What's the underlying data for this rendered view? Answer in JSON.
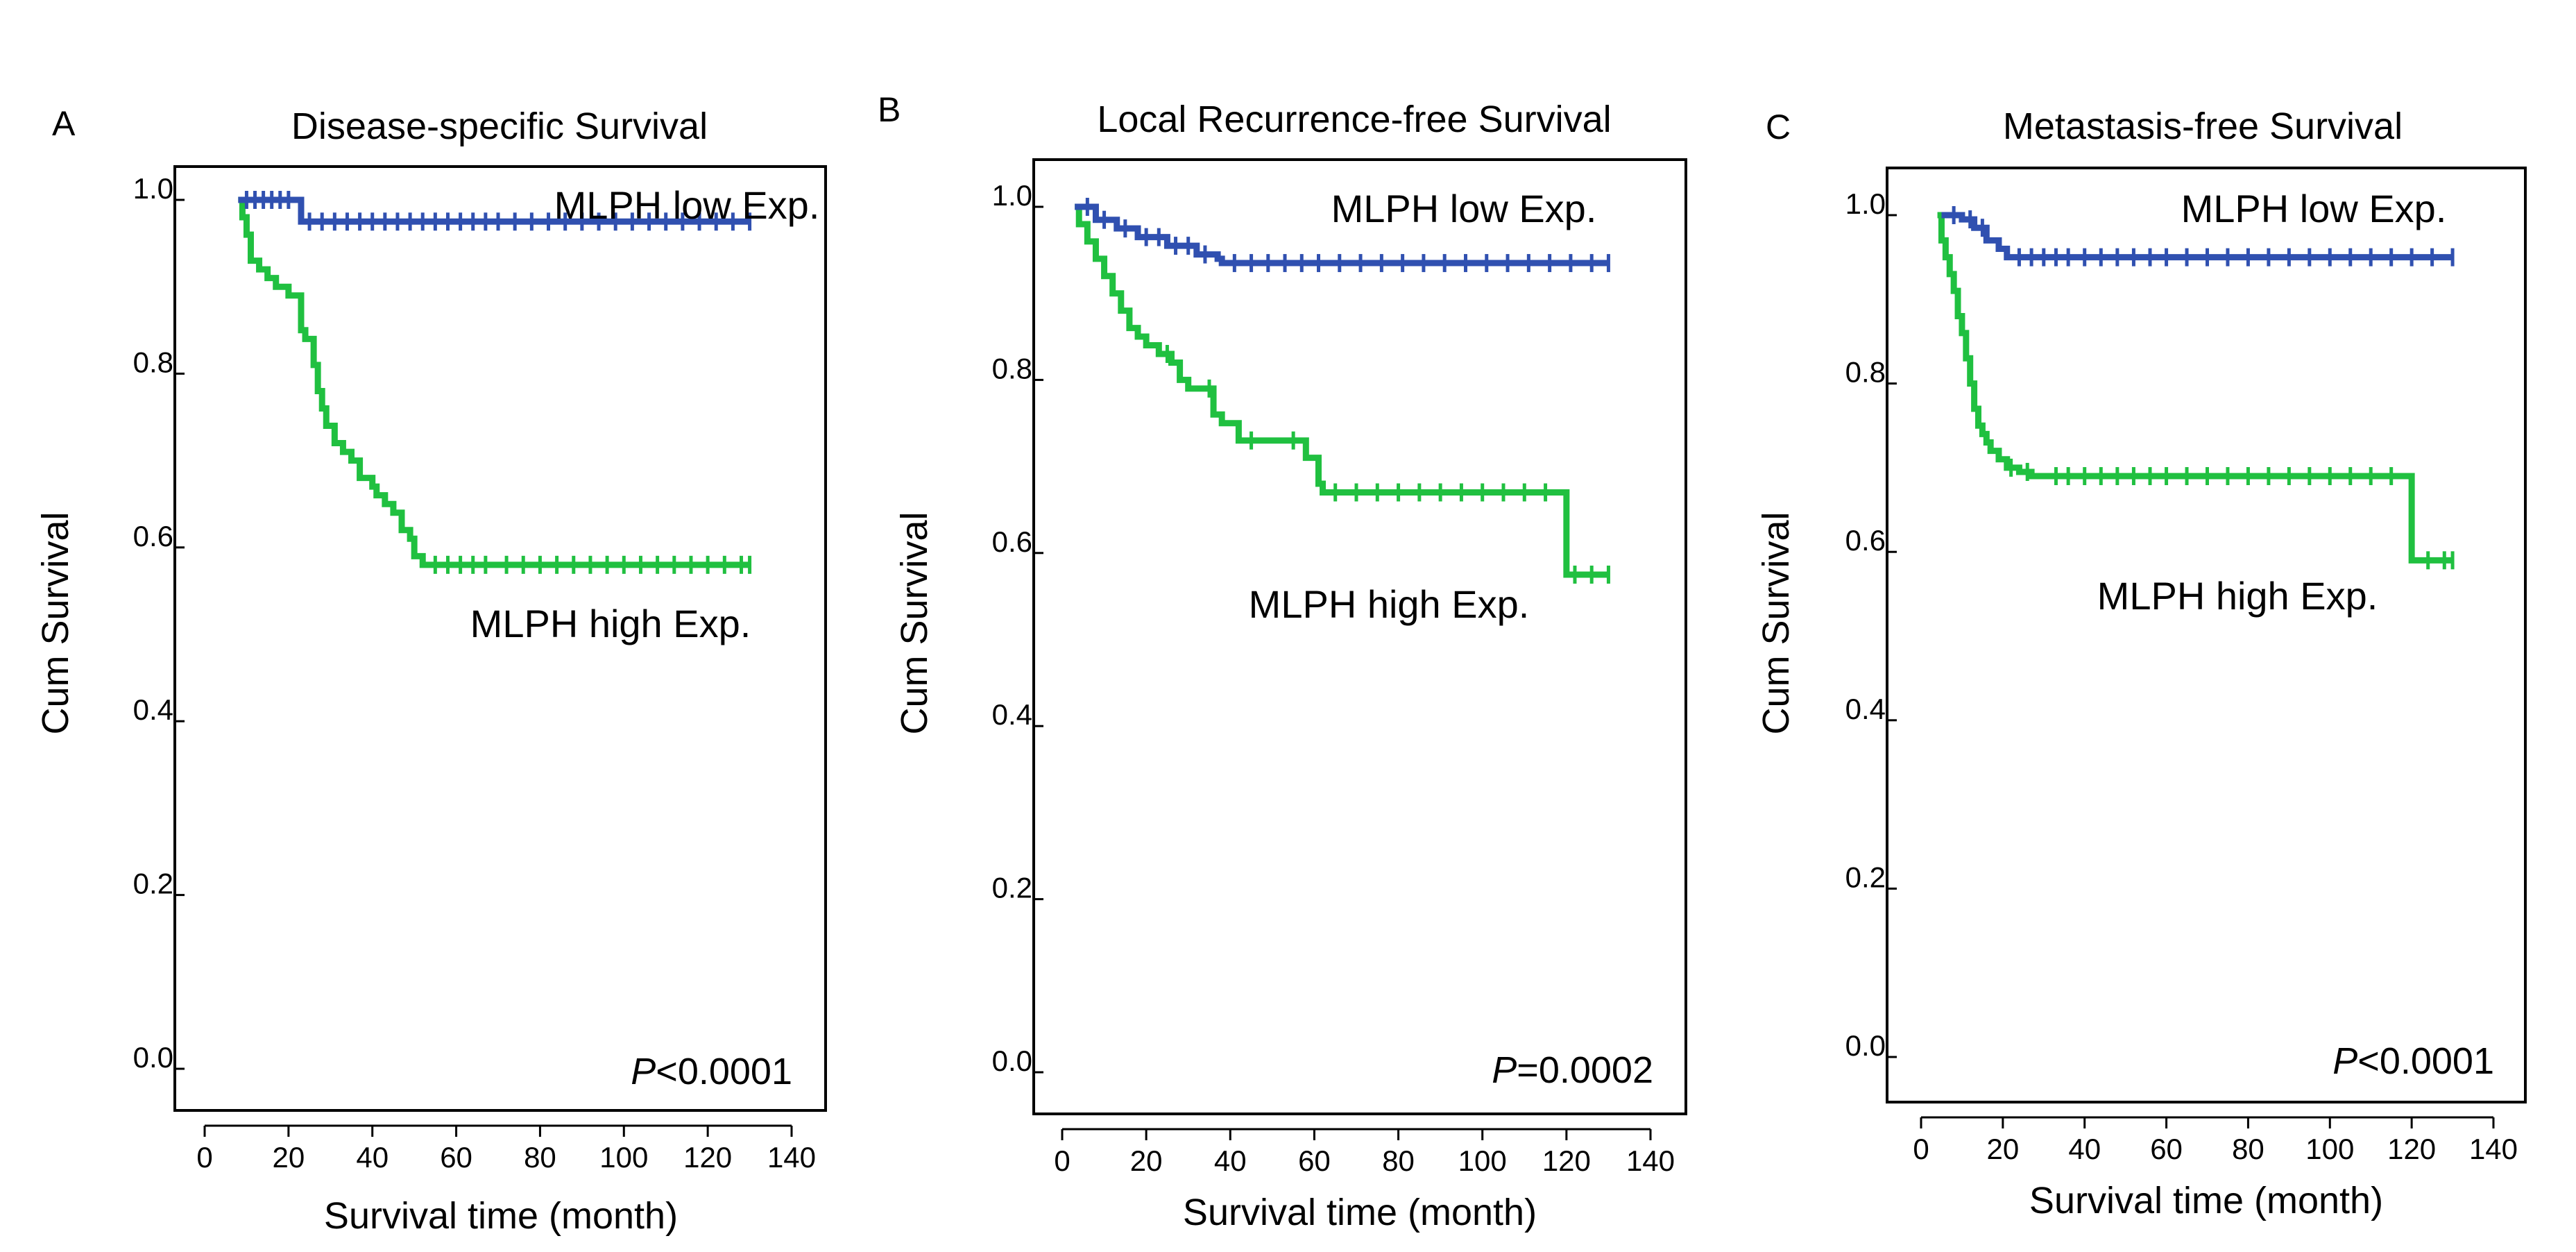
{
  "chart_data": [
    {
      "panel": "A",
      "type": "line",
      "title": "Disease-specific Survival",
      "xlabel": "Survival time (month)",
      "ylabel": "Cum Survival",
      "xlim": [
        0,
        140
      ],
      "ylim": [
        0.0,
        1.0
      ],
      "xticks": [
        "0",
        "20",
        "40",
        "60",
        "80",
        "100",
        "120",
        "140"
      ],
      "yticks": [
        "0.0",
        "0.2",
        "0.4",
        "0.6",
        "0.8",
        "1.0"
      ],
      "p_symbol": "P",
      "p_rest": "<0.0001",
      "series": [
        {
          "name": "MLPH low Exp.",
          "color": "#3050b0",
          "x": [
            8,
            22,
            23,
            130
          ],
          "y": [
            1.0,
            1.0,
            0.975,
            0.975
          ],
          "censor_x": [
            10,
            12,
            14,
            16,
            18,
            20,
            25,
            28,
            31,
            34,
            37,
            40,
            43,
            46,
            49,
            52,
            55,
            58,
            61,
            64,
            67,
            70,
            74,
            78,
            82,
            86,
            90,
            94,
            98,
            102,
            106,
            110,
            114,
            118,
            122,
            126,
            130
          ]
        },
        {
          "name": "MLPH high Exp.",
          "color": "#20c040",
          "x": [
            8,
            9,
            10,
            11,
            13,
            15,
            17,
            20,
            23,
            24,
            26,
            27,
            28,
            29,
            31,
            33,
            35,
            37,
            40,
            41,
            43,
            45,
            47,
            49,
            50,
            52,
            130
          ],
          "y": [
            1.0,
            0.98,
            0.96,
            0.93,
            0.92,
            0.91,
            0.9,
            0.89,
            0.85,
            0.84,
            0.81,
            0.78,
            0.76,
            0.74,
            0.72,
            0.71,
            0.7,
            0.68,
            0.67,
            0.66,
            0.65,
            0.64,
            0.62,
            0.61,
            0.59,
            0.58,
            0.58
          ],
          "censor_x": [
            55,
            58,
            61,
            64,
            67,
            72,
            76,
            80,
            84,
            88,
            92,
            96,
            100,
            104,
            108,
            112,
            116,
            120,
            124,
            128,
            130
          ]
        }
      ]
    },
    {
      "panel": "B",
      "type": "line",
      "title": "Local Recurrence-free Survival",
      "xlabel": "Survival time (month)",
      "ylabel": "Cum Survival",
      "xlim": [
        0,
        140
      ],
      "ylim": [
        0.0,
        1.0
      ],
      "xticks": [
        "0",
        "20",
        "40",
        "60",
        "80",
        "100",
        "120",
        "140"
      ],
      "yticks": [
        "0.0",
        "0.2",
        "0.4",
        "0.6",
        "0.8",
        "1.0"
      ],
      "p_symbol": "P",
      "p_rest": "=0.0002",
      "series": [
        {
          "name": "MLPH low Exp.",
          "color": "#3050b0",
          "x": [
            3,
            8,
            13,
            18,
            25,
            32,
            37,
            38,
            130
          ],
          "y": [
            1.0,
            0.985,
            0.975,
            0.965,
            0.955,
            0.945,
            0.94,
            0.935,
            0.935
          ],
          "censor_x": [
            6,
            10,
            15,
            20,
            23,
            27,
            30,
            34,
            41,
            45,
            49,
            53,
            57,
            61,
            66,
            71,
            76,
            81,
            86,
            91,
            96,
            101,
            106,
            111,
            116,
            121,
            126,
            130
          ]
        },
        {
          "name": "MLPH high Exp.",
          "color": "#20c040",
          "x": [
            3,
            4,
            6,
            8,
            10,
            12,
            14,
            16,
            18,
            20,
            23,
            26,
            28,
            30,
            32,
            36,
            38,
            42,
            50,
            58,
            61,
            62,
            119,
            120,
            130
          ],
          "y": [
            1.0,
            0.98,
            0.96,
            0.94,
            0.92,
            0.9,
            0.88,
            0.86,
            0.85,
            0.84,
            0.83,
            0.82,
            0.8,
            0.79,
            0.79,
            0.76,
            0.75,
            0.73,
            0.73,
            0.71,
            0.68,
            0.67,
            0.67,
            0.575,
            0.575
          ],
          "censor_x": [
            25,
            35,
            45,
            55,
            65,
            70,
            75,
            80,
            85,
            90,
            95,
            100,
            105,
            110,
            115,
            122,
            126,
            130
          ]
        }
      ]
    },
    {
      "panel": "C",
      "type": "line",
      "title": "Metastasis-free Survival",
      "xlabel": "Survival time (month)",
      "ylabel": "Cum Survival",
      "xlim": [
        0,
        140
      ],
      "ylim": [
        0.0,
        1.0
      ],
      "xticks": [
        "0",
        "20",
        "40",
        "60",
        "80",
        "100",
        "120",
        "140"
      ],
      "yticks": [
        "0.0",
        "0.2",
        "0.4",
        "0.6",
        "0.8",
        "1.0"
      ],
      "p_symbol": "P",
      "p_rest": "<0.0001",
      "series": [
        {
          "name": "MLPH low Exp.",
          "color": "#3050b0",
          "x": [
            5,
            10,
            13,
            16,
            19,
            21,
            130
          ],
          "y": [
            1.0,
            0.995,
            0.985,
            0.97,
            0.96,
            0.95,
            0.95
          ],
          "censor_x": [
            8,
            12,
            15,
            24,
            27,
            30,
            33,
            36,
            40,
            44,
            48,
            52,
            56,
            60,
            65,
            70,
            75,
            80,
            85,
            90,
            95,
            100,
            105,
            110,
            115,
            120,
            125,
            130
          ]
        },
        {
          "name": "MLPH high Exp.",
          "color": "#20c040",
          "x": [
            4,
            5,
            6,
            7,
            8,
            9,
            10,
            11,
            12,
            13,
            14,
            15,
            16,
            17,
            19,
            21,
            24,
            27,
            30,
            119,
            120,
            130
          ],
          "y": [
            1.0,
            0.97,
            0.95,
            0.93,
            0.91,
            0.88,
            0.86,
            0.83,
            0.8,
            0.77,
            0.75,
            0.74,
            0.73,
            0.72,
            0.71,
            0.7,
            0.695,
            0.69,
            0.69,
            0.69,
            0.59,
            0.59
          ],
          "censor_x": [
            22,
            26,
            33,
            36,
            40,
            44,
            48,
            52,
            56,
            60,
            65,
            70,
            75,
            80,
            85,
            90,
            95,
            100,
            105,
            110,
            115,
            124,
            128,
            130
          ]
        }
      ]
    }
  ]
}
